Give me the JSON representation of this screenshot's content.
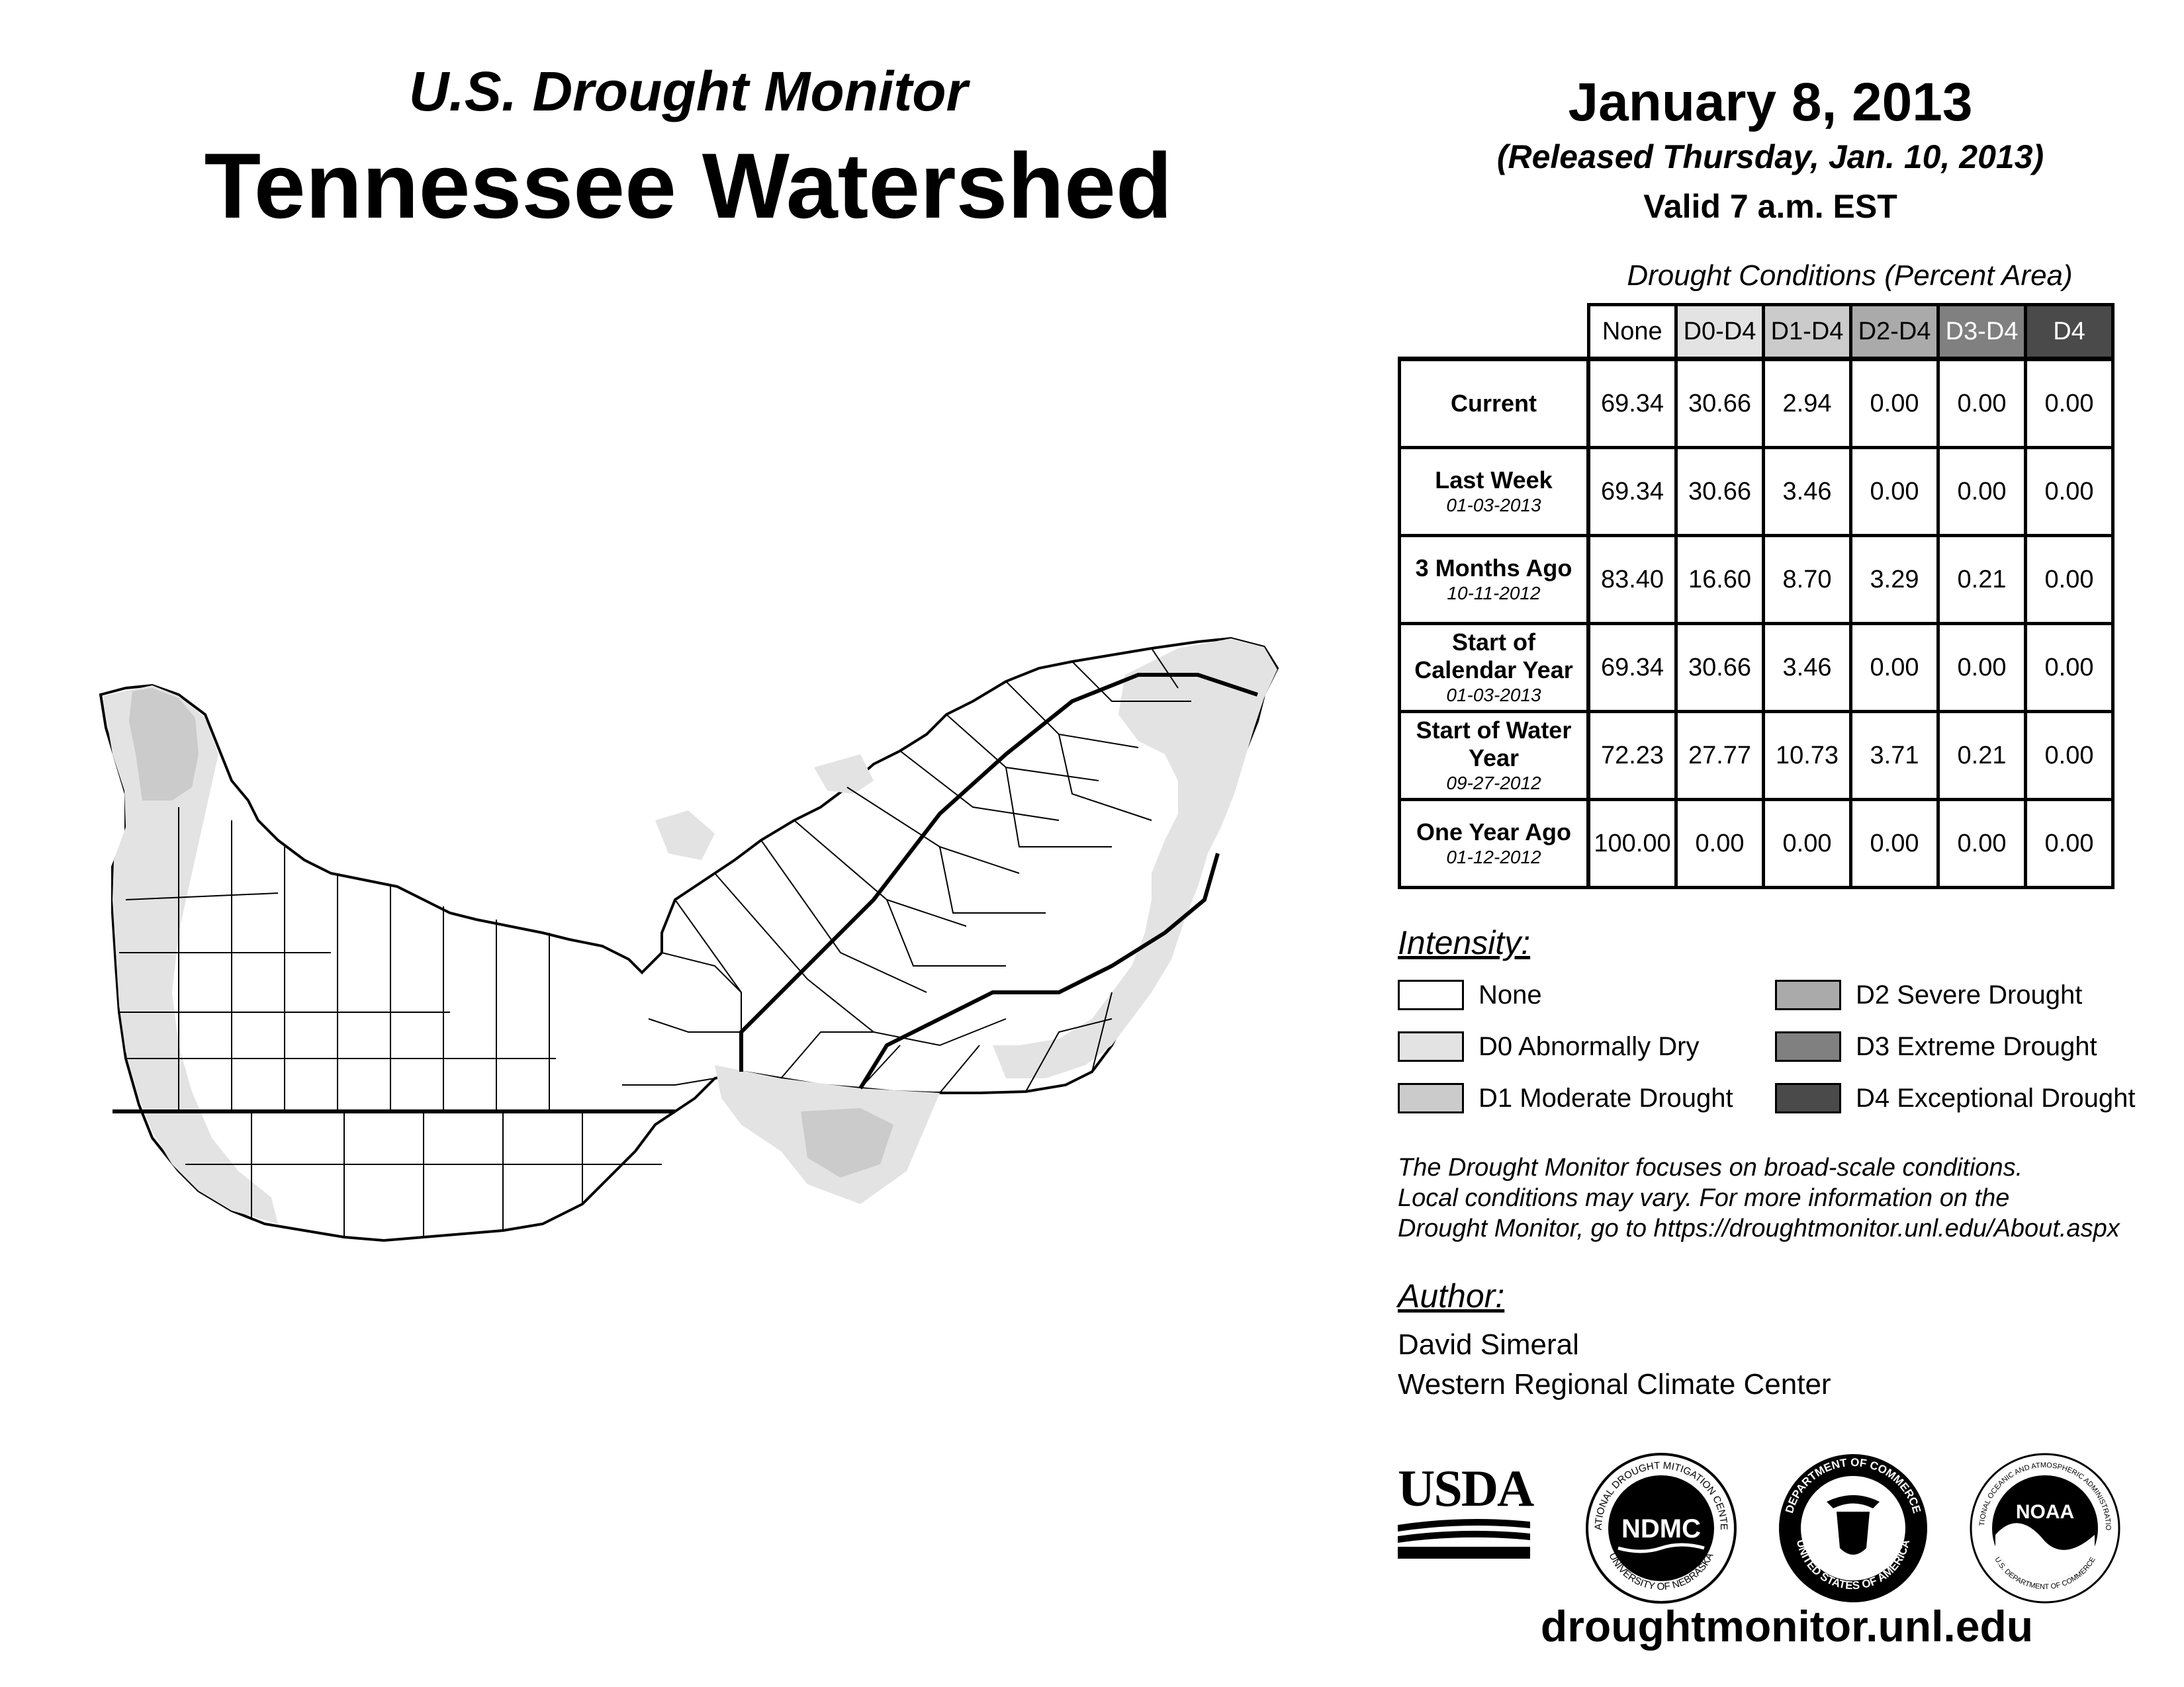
{
  "header": {
    "subtitle": "U.S. Drought Monitor",
    "title": "Tennessee Watershed",
    "date": "January 8, 2013",
    "released": "(Released Thursday, Jan. 10, 2013)",
    "valid": "Valid 7 a.m. EST"
  },
  "table": {
    "caption": "Drought Conditions (Percent Area)",
    "columns": [
      "None",
      "D0-D4",
      "D1-D4",
      "D2-D4",
      "D3-D4",
      "D4"
    ],
    "rows": [
      {
        "label": "Current",
        "date": "",
        "values": [
          "69.34",
          "30.66",
          "2.94",
          "0.00",
          "0.00",
          "0.00"
        ]
      },
      {
        "label": "Last Week",
        "date": "01-03-2013",
        "values": [
          "69.34",
          "30.66",
          "3.46",
          "0.00",
          "0.00",
          "0.00"
        ]
      },
      {
        "label": "3 Months Ago",
        "date": "10-11-2012",
        "values": [
          "83.40",
          "16.60",
          "8.70",
          "3.29",
          "0.21",
          "0.00"
        ]
      },
      {
        "label": "Start of Calendar Year",
        "date": "01-03-2013",
        "values": [
          "69.34",
          "30.66",
          "3.46",
          "0.00",
          "0.00",
          "0.00"
        ]
      },
      {
        "label": "Start of Water Year",
        "date": "09-27-2012",
        "values": [
          "72.23",
          "27.77",
          "10.73",
          "3.71",
          "0.21",
          "0.00"
        ]
      },
      {
        "label": "One Year Ago",
        "date": "01-12-2012",
        "values": [
          "100.00",
          "0.00",
          "0.00",
          "0.00",
          "0.00",
          "0.00"
        ]
      }
    ]
  },
  "legend": {
    "title": "Intensity:",
    "items": [
      {
        "label": "None",
        "color": "#ffffff"
      },
      {
        "label": "D0 Abnormally Dry",
        "color": "#e3e3e3"
      },
      {
        "label": "D1 Moderate Drought",
        "color": "#cbcbcb"
      },
      {
        "label": "D2 Severe Drought",
        "color": "#aaaaaa"
      },
      {
        "label": "D3 Extreme Drought",
        "color": "#808080"
      },
      {
        "label": "D4 Exceptional Drought",
        "color": "#4a4a4a"
      }
    ]
  },
  "note": {
    "line1": "The Drought Monitor focuses on broad-scale conditions.",
    "line2": "Local conditions may vary. For more information on the",
    "line3": "Drought Monitor, go to https://droughtmonitor.unl.edu/About.aspx"
  },
  "author": {
    "title": "Author:",
    "name": "David Simeral",
    "org": "Western Regional Climate Center"
  },
  "logos": {
    "usda": "USDA",
    "ndmc": "NDMC",
    "ndmc_ring_top": "NATIONAL DROUGHT MITIGATION CENTER",
    "ndmc_ring_bottom": "UNIVERSITY OF NEBRASKA",
    "doc_ring_top": "DEPARTMENT OF COMMERCE",
    "doc_ring_bottom": "UNITED STATES OF AMERICA",
    "noaa": "NOAA",
    "noaa_ring_top": "NATIONAL OCEANIC AND ATMOSPHERIC ADMINISTRATION",
    "noaa_ring_bottom": "U.S. DEPARTMENT OF COMMERCE"
  },
  "footer": {
    "url": "droughtmonitor.unl.edu"
  },
  "colors": {
    "header_d0": "#e3e3e3",
    "header_d1": "#cbcbcb",
    "header_d2": "#aaaaaa",
    "header_d3": "#808080",
    "header_d4": "#4a4a4a"
  }
}
